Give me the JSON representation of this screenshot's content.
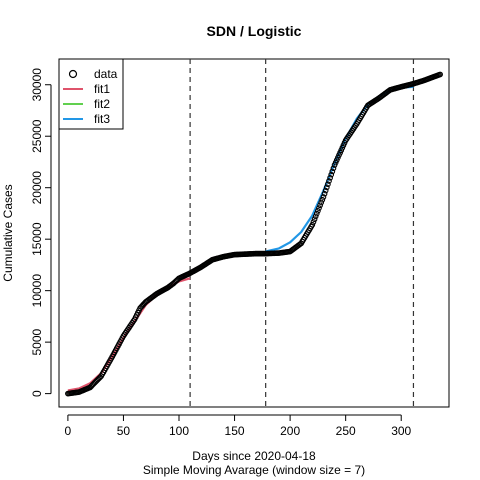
{
  "chart_data": {
    "type": "line",
    "title": "SDN / Logistic",
    "xlabel": "Days since 2020-04-18",
    "xlabel2": "Simple Moving Avarage (window size = 7)",
    "ylabel": "Cumulative Cases",
    "xlim": [
      -8,
      343
    ],
    "ylim": [
      -1300,
      32500
    ],
    "xticks": [
      0,
      50,
      100,
      150,
      200,
      250,
      300
    ],
    "yticks": [
      0,
      5000,
      10000,
      15000,
      20000,
      25000,
      30000
    ],
    "vlines": [
      110,
      178,
      311
    ],
    "legend": {
      "position": "top-left",
      "entries": [
        {
          "label": "data",
          "kind": "circle",
          "color": "#000000"
        },
        {
          "label": "fit1",
          "kind": "line",
          "color": "#DF536B"
        },
        {
          "label": "fit2",
          "kind": "line",
          "color": "#61D04F"
        },
        {
          "label": "fit3",
          "kind": "line",
          "color": "#2297E6"
        }
      ]
    },
    "data_series": {
      "name": "data",
      "color": "#000000",
      "points": [
        [
          0,
          0
        ],
        [
          10,
          150
        ],
        [
          20,
          600
        ],
        [
          30,
          1700
        ],
        [
          40,
          3600
        ],
        [
          50,
          5600
        ],
        [
          60,
          7200
        ],
        [
          65,
          8300
        ],
        [
          70,
          8900
        ],
        [
          80,
          9700
        ],
        [
          90,
          10300
        ],
        [
          95,
          10700
        ],
        [
          100,
          11200
        ],
        [
          110,
          11700
        ],
        [
          120,
          12300
        ],
        [
          130,
          13000
        ],
        [
          140,
          13300
        ],
        [
          150,
          13500
        ],
        [
          160,
          13550
        ],
        [
          170,
          13600
        ],
        [
          178,
          13600
        ],
        [
          190,
          13650
        ],
        [
          200,
          13800
        ],
        [
          210,
          14600
        ],
        [
          220,
          16400
        ],
        [
          230,
          19100
        ],
        [
          240,
          22200
        ],
        [
          250,
          24600
        ],
        [
          260,
          26200
        ],
        [
          270,
          28000
        ],
        [
          280,
          28700
        ],
        [
          290,
          29500
        ],
        [
          300,
          29800
        ],
        [
          311,
          30100
        ],
        [
          320,
          30400
        ],
        [
          330,
          30800
        ],
        [
          335,
          31000
        ]
      ]
    },
    "series": [
      {
        "name": "fit1",
        "color": "#DF536B",
        "points": [
          [
            0,
            300
          ],
          [
            10,
            500
          ],
          [
            20,
            1000
          ],
          [
            30,
            2000
          ],
          [
            40,
            3600
          ],
          [
            50,
            5400
          ],
          [
            60,
            7000
          ],
          [
            70,
            8600
          ],
          [
            80,
            9600
          ],
          [
            90,
            10300
          ],
          [
            100,
            10900
          ],
          [
            110,
            11200
          ]
        ]
      },
      {
        "name": "fit2",
        "color": "#61D04F",
        "points": [
          [
            110,
            11700
          ],
          [
            120,
            12300
          ],
          [
            130,
            13000
          ],
          [
            140,
            13300
          ],
          [
            150,
            13500
          ],
          [
            160,
            13550
          ],
          [
            170,
            13600
          ],
          [
            178,
            13600
          ]
        ]
      },
      {
        "name": "fit3",
        "color": "#2297E6",
        "points": [
          [
            178,
            13800
          ],
          [
            190,
            14100
          ],
          [
            200,
            14700
          ],
          [
            210,
            15700
          ],
          [
            220,
            17300
          ],
          [
            230,
            19700
          ],
          [
            240,
            22400
          ],
          [
            250,
            24800
          ],
          [
            260,
            26700
          ],
          [
            270,
            28100
          ],
          [
            280,
            28900
          ],
          [
            290,
            29400
          ],
          [
            300,
            29700
          ],
          [
            311,
            29800
          ]
        ]
      }
    ]
  }
}
